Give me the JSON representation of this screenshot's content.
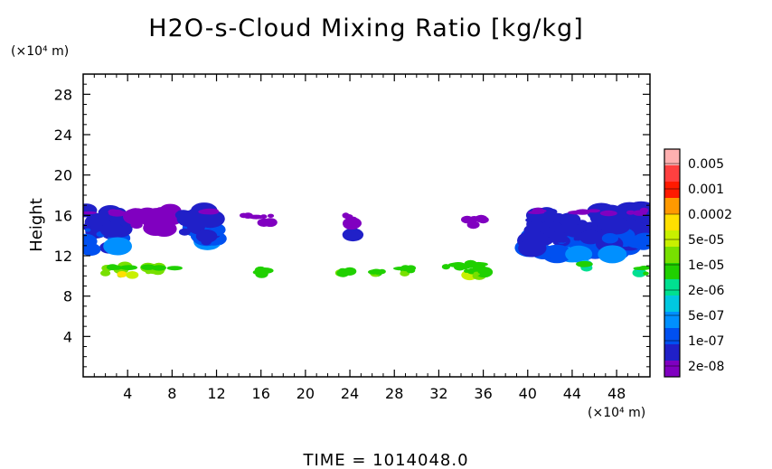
{
  "chart_data": {
    "type": "heatmap",
    "title": "H2O-s-Cloud Mixing Ratio [kg/kg]",
    "ylabel": "Height",
    "y_unit": "(×10⁴ m)",
    "x_unit": "(×10⁴ m)",
    "xlim": [
      0,
      51
    ],
    "ylim": [
      0,
      30
    ],
    "x_ticks": [
      4,
      8,
      12,
      16,
      20,
      24,
      28,
      32,
      36,
      40,
      44,
      48
    ],
    "y_ticks": [
      4,
      8,
      12,
      16,
      20,
      24,
      28
    ],
    "colorbar": {
      "labels": [
        "0.005",
        "0.001",
        "0.0002",
        "5e-05",
        "1e-05",
        "2e-06",
        "5e-07",
        "1e-07",
        "2e-08"
      ],
      "colors": [
        "#ffb0b0",
        "#ff4040",
        "#ff1a00",
        "#ff9900",
        "#ffe000",
        "#c8f000",
        "#78e000",
        "#20d000",
        "#00e090",
        "#00c8e0",
        "#0090ff",
        "#0050f0",
        "#2020c8",
        "#8000c0"
      ]
    },
    "cloud_regions": [
      {
        "x": [
          0,
          3.5
        ],
        "y": [
          12.5,
          16.5
        ],
        "level": "5e-07"
      },
      {
        "x": [
          4,
          8
        ],
        "y": [
          14.5,
          16.5
        ],
        "level": "2e-08"
      },
      {
        "x": [
          9,
          12
        ],
        "y": [
          13,
          16.5
        ],
        "level": "5e-07"
      },
      {
        "x": [
          14.3,
          17
        ],
        "y": [
          15.2,
          16
        ],
        "level": "1e-07"
      },
      {
        "x": [
          23.5,
          24.5
        ],
        "y": [
          14,
          16
        ],
        "level": "1e-07"
      },
      {
        "x": [
          34.5,
          36
        ],
        "y": [
          15,
          15.7
        ],
        "level": "1e-07"
      },
      {
        "x": [
          40,
          51
        ],
        "y": [
          12,
          16.5
        ],
        "level": "5e-07"
      },
      {
        "x": [
          2,
          8.5
        ],
        "y": [
          10,
          11
        ],
        "level": "0.0002"
      },
      {
        "x": [
          15.5,
          16.5
        ],
        "y": [
          10,
          10.6
        ],
        "level": "5e-05"
      },
      {
        "x": [
          23,
          24
        ],
        "y": [
          10,
          10.6
        ],
        "level": "5e-05"
      },
      {
        "x": [
          26,
          27
        ],
        "y": [
          10,
          10.5
        ],
        "level": "5e-05"
      },
      {
        "x": [
          28.5,
          29.5
        ],
        "y": [
          10.2,
          10.8
        ],
        "level": "5e-05"
      },
      {
        "x": [
          32,
          36.5
        ],
        "y": [
          10,
          11.2
        ],
        "level": "5e-05"
      },
      {
        "x": [
          44.5,
          45.5
        ],
        "y": [
          10.7,
          11.2
        ],
        "level": "1e-05"
      },
      {
        "x": [
          49.8,
          51
        ],
        "y": [
          10.2,
          10.8
        ],
        "level": "1e-05"
      }
    ]
  },
  "footer": {
    "time_label": "TIME = 1014048.0"
  }
}
